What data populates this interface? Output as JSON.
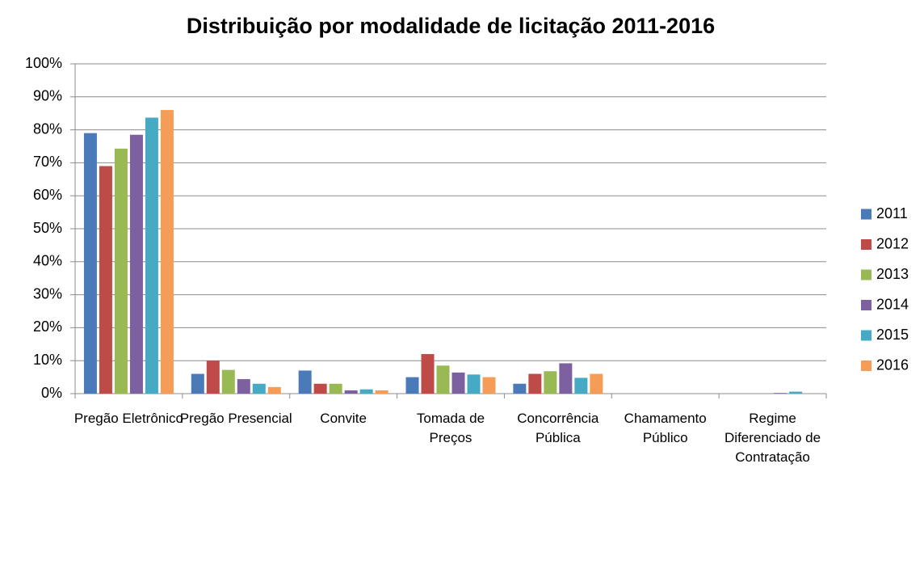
{
  "chart_data": {
    "type": "bar",
    "title": "Distribuição por modalidade de licitação 2011-2016",
    "categories": [
      "Pregão Eletrônico",
      "Pregão Presencial",
      "Convite",
      "Tomada de Preços",
      "Concorrência Pública",
      "Chamamento Público",
      "Regime Diferenciado de Contratação"
    ],
    "series": [
      {
        "name": "2011",
        "color": "#4a7ab8",
        "values": [
          79,
          6,
          7,
          5,
          3,
          0,
          0
        ]
      },
      {
        "name": "2012",
        "color": "#be4b48",
        "values": [
          69,
          10,
          3,
          12,
          6,
          0,
          0
        ]
      },
      {
        "name": "2013",
        "color": "#98b954",
        "values": [
          74.3,
          7.2,
          3,
          8.5,
          6.8,
          0,
          0
        ]
      },
      {
        "name": "2014",
        "color": "#7d60a0",
        "values": [
          78.5,
          4.4,
          1,
          6.4,
          9.2,
          0,
          0.2
        ]
      },
      {
        "name": "2015",
        "color": "#46aac5",
        "values": [
          83.7,
          3,
          1.3,
          5.8,
          4.8,
          0,
          0.6
        ]
      },
      {
        "name": "2016",
        "color": "#f59d56",
        "values": [
          86,
          2,
          1,
          5,
          6,
          0,
          0
        ]
      }
    ],
    "ylim": [
      0,
      100
    ],
    "yticks": [
      {
        "value": 0,
        "label": "0%"
      },
      {
        "value": 10,
        "label": "10%"
      },
      {
        "value": 20,
        "label": "20%"
      },
      {
        "value": 30,
        "label": "30%"
      },
      {
        "value": 40,
        "label": "40%"
      },
      {
        "value": 50,
        "label": "50%"
      },
      {
        "value": 60,
        "label": "60%"
      },
      {
        "value": 70,
        "label": "70%"
      },
      {
        "value": 80,
        "label": "80%"
      },
      {
        "value": 90,
        "label": "90%"
      },
      {
        "value": 100,
        "label": "100%"
      }
    ],
    "grid": true,
    "legend": "right"
  }
}
